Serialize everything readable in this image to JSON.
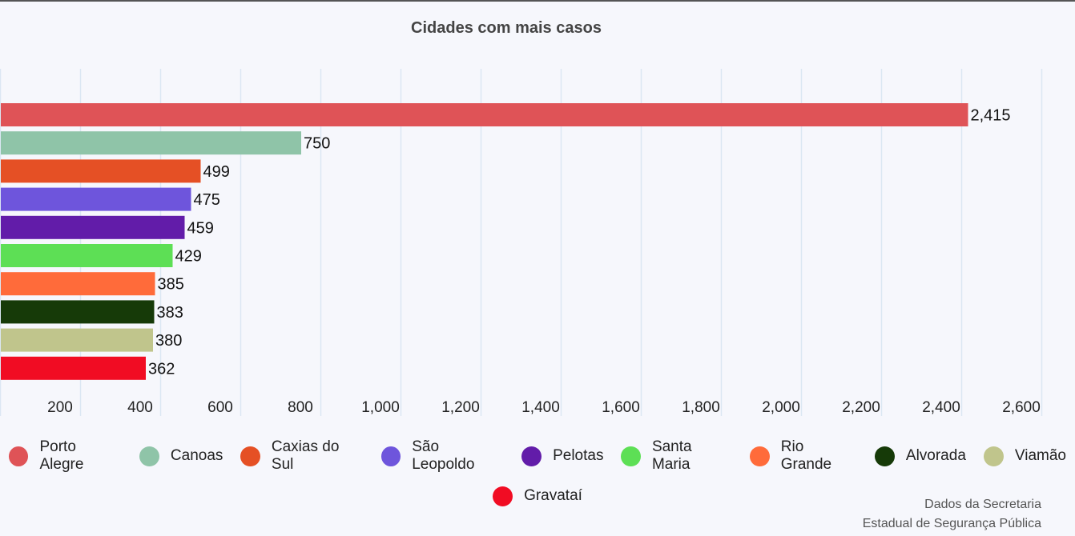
{
  "chart_data": {
    "type": "bar",
    "orientation": "horizontal",
    "title": "Cidades com mais casos",
    "categories": [
      "Porto Alegre",
      "Canoas",
      "Caxias do Sul",
      "São Leopoldo",
      "Pelotas",
      "Santa Maria",
      "Rio Grande",
      "Alvorada",
      "Viamão",
      "Gravataí"
    ],
    "values": [
      2415,
      750,
      499,
      475,
      459,
      429,
      385,
      383,
      380,
      362
    ],
    "value_labels": [
      "2,415",
      "750",
      "499",
      "475",
      "459",
      "429",
      "385",
      "383",
      "380",
      "362"
    ],
    "colors": [
      "#df5357",
      "#8fc4a8",
      "#e55025",
      "#6e55dc",
      "#621ca9",
      "#5ddf55",
      "#ff6b3a",
      "#163a08",
      "#c0c58c",
      "#f10c23"
    ],
    "xlim": [
      0,
      2680
    ],
    "xticks": [
      200,
      400,
      600,
      800,
      1000,
      1200,
      1400,
      1600,
      1800,
      2000,
      2200,
      2400,
      2600
    ],
    "xtick_labels": [
      "200",
      "400",
      "600",
      "800",
      "1,000",
      "1,200",
      "1,400",
      "1,600",
      "1,800",
      "2,000",
      "2,200",
      "2,400",
      "2,600"
    ],
    "grid": true,
    "legend_position": "bottom"
  },
  "credits": {
    "line1": "Dados da Secretaria",
    "line2": "Estadual de Segurança Pública"
  }
}
